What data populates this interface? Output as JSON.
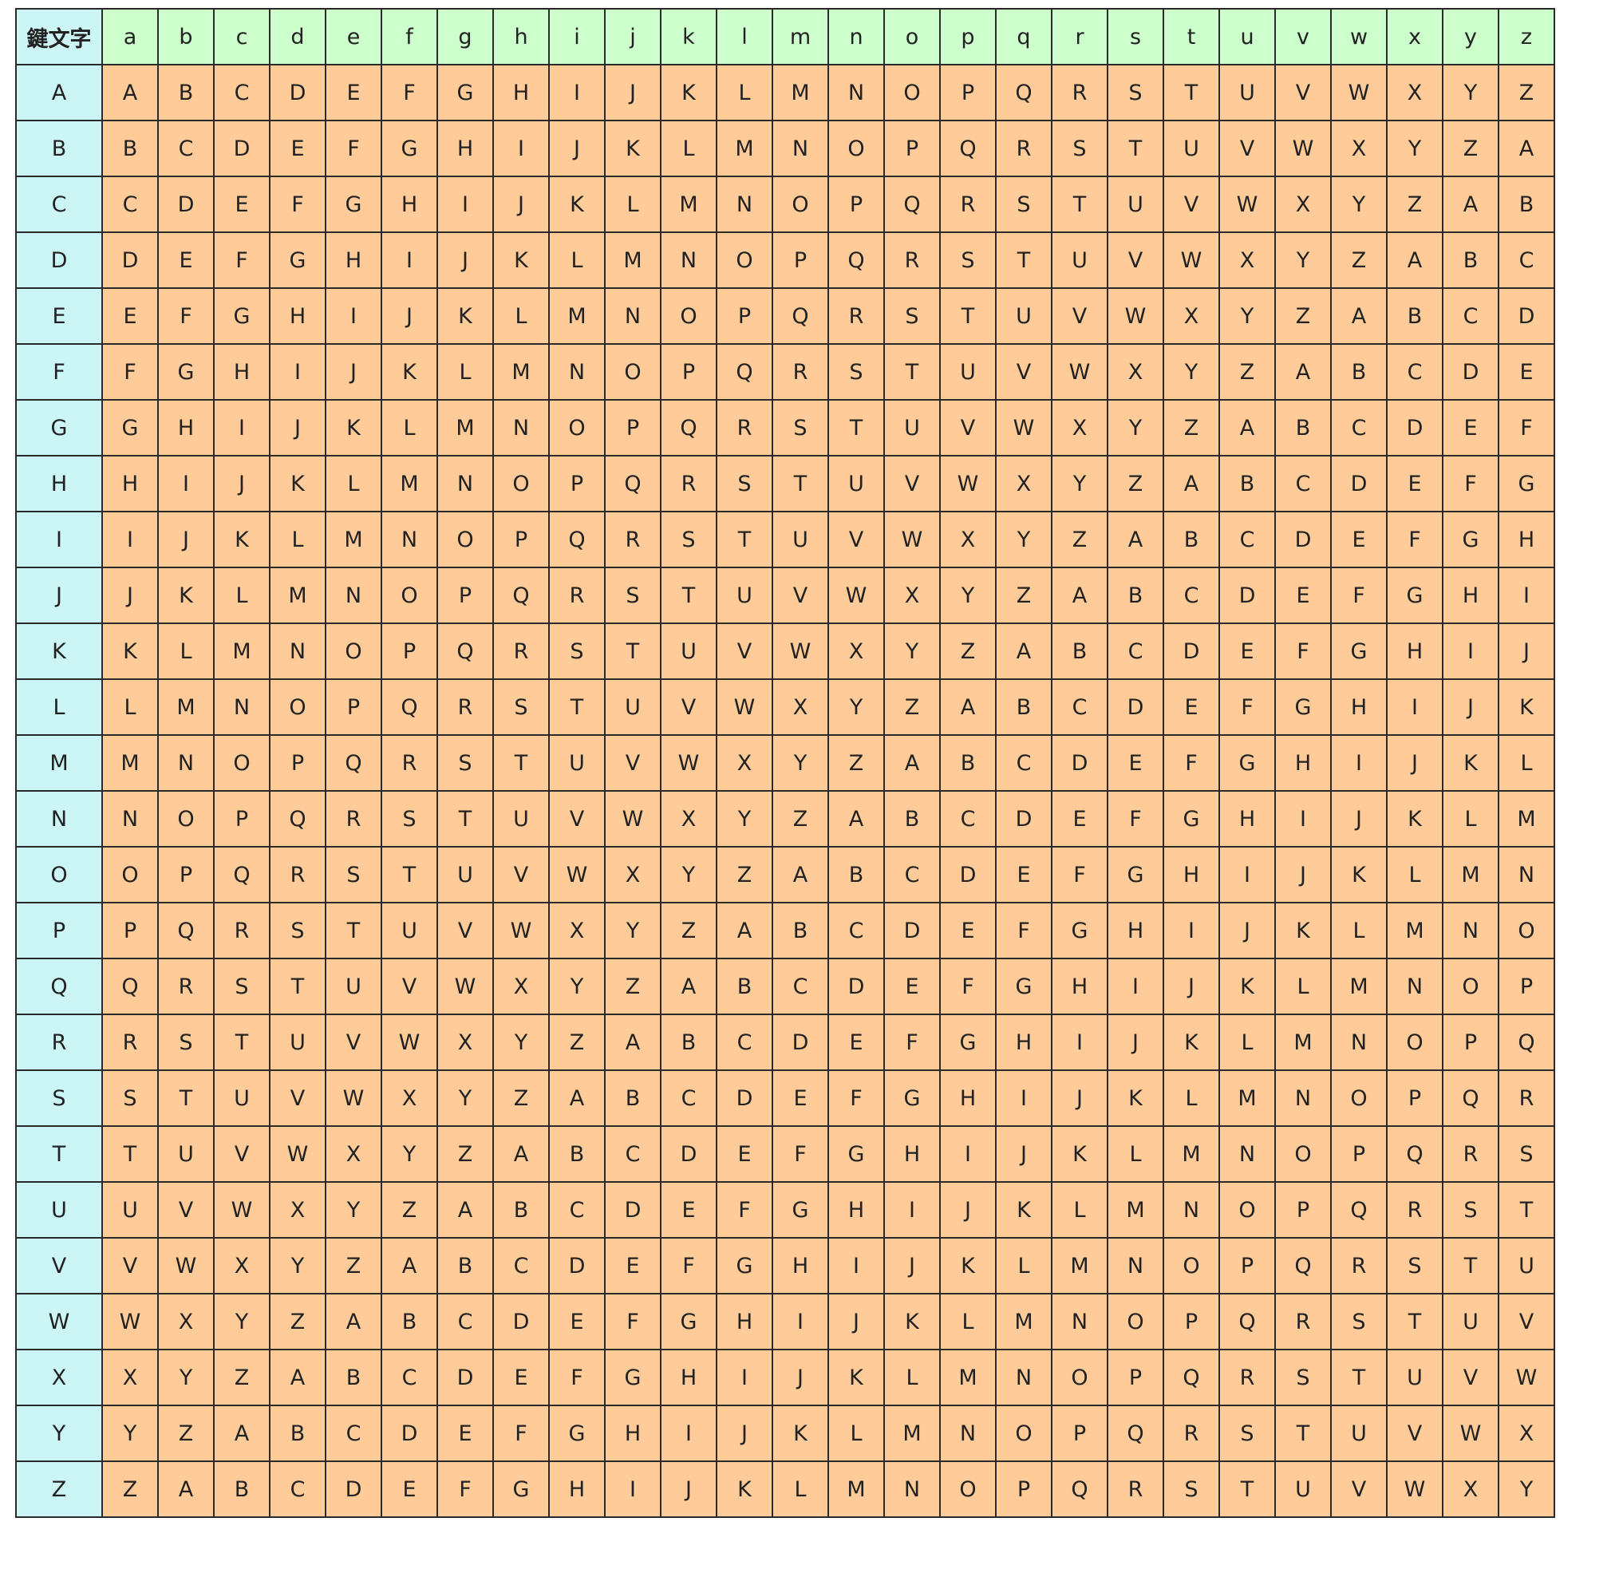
{
  "table": {
    "corner_label": "鍵文字",
    "column_keys": [
      "a",
      "b",
      "c",
      "d",
      "e",
      "f",
      "g",
      "h",
      "i",
      "j",
      "k",
      "l",
      "m",
      "n",
      "o",
      "p",
      "q",
      "r",
      "s",
      "t",
      "u",
      "v",
      "w",
      "x",
      "y",
      "z"
    ],
    "row_keys": [
      "A",
      "B",
      "C",
      "D",
      "E",
      "F",
      "G",
      "H",
      "I",
      "J",
      "K",
      "L",
      "M",
      "N",
      "O",
      "P",
      "Q",
      "R",
      "S",
      "T",
      "U",
      "V",
      "W",
      "X",
      "Y",
      "Z"
    ],
    "rows": [
      [
        "A",
        "B",
        "C",
        "D",
        "E",
        "F",
        "G",
        "H",
        "I",
        "J",
        "K",
        "L",
        "M",
        "N",
        "O",
        "P",
        "Q",
        "R",
        "S",
        "T",
        "U",
        "V",
        "W",
        "X",
        "Y",
        "Z"
      ],
      [
        "B",
        "C",
        "D",
        "E",
        "F",
        "G",
        "H",
        "I",
        "J",
        "K",
        "L",
        "M",
        "N",
        "O",
        "P",
        "Q",
        "R",
        "S",
        "T",
        "U",
        "V",
        "W",
        "X",
        "Y",
        "Z",
        "A"
      ],
      [
        "C",
        "D",
        "E",
        "F",
        "G",
        "H",
        "I",
        "J",
        "K",
        "L",
        "M",
        "N",
        "O",
        "P",
        "Q",
        "R",
        "S",
        "T",
        "U",
        "V",
        "W",
        "X",
        "Y",
        "Z",
        "A",
        "B"
      ],
      [
        "D",
        "E",
        "F",
        "G",
        "H",
        "I",
        "J",
        "K",
        "L",
        "M",
        "N",
        "O",
        "P",
        "Q",
        "R",
        "S",
        "T",
        "U",
        "V",
        "W",
        "X",
        "Y",
        "Z",
        "A",
        "B",
        "C"
      ],
      [
        "E",
        "F",
        "G",
        "H",
        "I",
        "J",
        "K",
        "L",
        "M",
        "N",
        "O",
        "P",
        "Q",
        "R",
        "S",
        "T",
        "U",
        "V",
        "W",
        "X",
        "Y",
        "Z",
        "A",
        "B",
        "C",
        "D"
      ],
      [
        "F",
        "G",
        "H",
        "I",
        "J",
        "K",
        "L",
        "M",
        "N",
        "O",
        "P",
        "Q",
        "R",
        "S",
        "T",
        "U",
        "V",
        "W",
        "X",
        "Y",
        "Z",
        "A",
        "B",
        "C",
        "D",
        "E"
      ],
      [
        "G",
        "H",
        "I",
        "J",
        "K",
        "L",
        "M",
        "N",
        "O",
        "P",
        "Q",
        "R",
        "S",
        "T",
        "U",
        "V",
        "W",
        "X",
        "Y",
        "Z",
        "A",
        "B",
        "C",
        "D",
        "E",
        "F"
      ],
      [
        "H",
        "I",
        "J",
        "K",
        "L",
        "M",
        "N",
        "O",
        "P",
        "Q",
        "R",
        "S",
        "T",
        "U",
        "V",
        "W",
        "X",
        "Y",
        "Z",
        "A",
        "B",
        "C",
        "D",
        "E",
        "F",
        "G"
      ],
      [
        "I",
        "J",
        "K",
        "L",
        "M",
        "N",
        "O",
        "P",
        "Q",
        "R",
        "S",
        "T",
        "U",
        "V",
        "W",
        "X",
        "Y",
        "Z",
        "A",
        "B",
        "C",
        "D",
        "E",
        "F",
        "G",
        "H"
      ],
      [
        "J",
        "K",
        "L",
        "M",
        "N",
        "O",
        "P",
        "Q",
        "R",
        "S",
        "T",
        "U",
        "V",
        "W",
        "X",
        "Y",
        "Z",
        "A",
        "B",
        "C",
        "D",
        "E",
        "F",
        "G",
        "H",
        "I"
      ],
      [
        "K",
        "L",
        "M",
        "N",
        "O",
        "P",
        "Q",
        "R",
        "S",
        "T",
        "U",
        "V",
        "W",
        "X",
        "Y",
        "Z",
        "A",
        "B",
        "C",
        "D",
        "E",
        "F",
        "G",
        "H",
        "I",
        "J"
      ],
      [
        "L",
        "M",
        "N",
        "O",
        "P",
        "Q",
        "R",
        "S",
        "T",
        "U",
        "V",
        "W",
        "X",
        "Y",
        "Z",
        "A",
        "B",
        "C",
        "D",
        "E",
        "F",
        "G",
        "H",
        "I",
        "J",
        "K"
      ],
      [
        "M",
        "N",
        "O",
        "P",
        "Q",
        "R",
        "S",
        "T",
        "U",
        "V",
        "W",
        "X",
        "Y",
        "Z",
        "A",
        "B",
        "C",
        "D",
        "E",
        "F",
        "G",
        "H",
        "I",
        "J",
        "K",
        "L"
      ],
      [
        "N",
        "O",
        "P",
        "Q",
        "R",
        "S",
        "T",
        "U",
        "V",
        "W",
        "X",
        "Y",
        "Z",
        "A",
        "B",
        "C",
        "D",
        "E",
        "F",
        "G",
        "H",
        "I",
        "J",
        "K",
        "L",
        "M"
      ],
      [
        "O",
        "P",
        "Q",
        "R",
        "S",
        "T",
        "U",
        "V",
        "W",
        "X",
        "Y",
        "Z",
        "A",
        "B",
        "C",
        "D",
        "E",
        "F",
        "G",
        "H",
        "I",
        "J",
        "K",
        "L",
        "M",
        "N"
      ],
      [
        "P",
        "Q",
        "R",
        "S",
        "T",
        "U",
        "V",
        "W",
        "X",
        "Y",
        "Z",
        "A",
        "B",
        "C",
        "D",
        "E",
        "F",
        "G",
        "H",
        "I",
        "J",
        "K",
        "L",
        "M",
        "N",
        "O"
      ],
      [
        "Q",
        "R",
        "S",
        "T",
        "U",
        "V",
        "W",
        "X",
        "Y",
        "Z",
        "A",
        "B",
        "C",
        "D",
        "E",
        "F",
        "G",
        "H",
        "I",
        "J",
        "K",
        "L",
        "M",
        "N",
        "O",
        "P"
      ],
      [
        "R",
        "S",
        "T",
        "U",
        "V",
        "W",
        "X",
        "Y",
        "Z",
        "A",
        "B",
        "C",
        "D",
        "E",
        "F",
        "G",
        "H",
        "I",
        "J",
        "K",
        "L",
        "M",
        "N",
        "O",
        "P",
        "Q"
      ],
      [
        "S",
        "T",
        "U",
        "V",
        "W",
        "X",
        "Y",
        "Z",
        "A",
        "B",
        "C",
        "D",
        "E",
        "F",
        "G",
        "H",
        "I",
        "J",
        "K",
        "L",
        "M",
        "N",
        "O",
        "P",
        "Q",
        "R"
      ],
      [
        "T",
        "U",
        "V",
        "W",
        "X",
        "Y",
        "Z",
        "A",
        "B",
        "C",
        "D",
        "E",
        "F",
        "G",
        "H",
        "I",
        "J",
        "K",
        "L",
        "M",
        "N",
        "O",
        "P",
        "Q",
        "R",
        "S"
      ],
      [
        "U",
        "V",
        "W",
        "X",
        "Y",
        "Z",
        "A",
        "B",
        "C",
        "D",
        "E",
        "F",
        "G",
        "H",
        "I",
        "J",
        "K",
        "L",
        "M",
        "N",
        "O",
        "P",
        "Q",
        "R",
        "S",
        "T"
      ],
      [
        "V",
        "W",
        "X",
        "Y",
        "Z",
        "A",
        "B",
        "C",
        "D",
        "E",
        "F",
        "G",
        "H",
        "I",
        "J",
        "K",
        "L",
        "M",
        "N",
        "O",
        "P",
        "Q",
        "R",
        "S",
        "T",
        "U"
      ],
      [
        "W",
        "X",
        "Y",
        "Z",
        "A",
        "B",
        "C",
        "D",
        "E",
        "F",
        "G",
        "H",
        "I",
        "J",
        "K",
        "L",
        "M",
        "N",
        "O",
        "P",
        "Q",
        "R",
        "S",
        "T",
        "U",
        "V"
      ],
      [
        "X",
        "Y",
        "Z",
        "A",
        "B",
        "C",
        "D",
        "E",
        "F",
        "G",
        "H",
        "I",
        "J",
        "K",
        "L",
        "M",
        "N",
        "O",
        "P",
        "Q",
        "R",
        "S",
        "T",
        "U",
        "V",
        "W"
      ],
      [
        "Y",
        "Z",
        "A",
        "B",
        "C",
        "D",
        "E",
        "F",
        "G",
        "H",
        "I",
        "J",
        "K",
        "L",
        "M",
        "N",
        "O",
        "P",
        "Q",
        "R",
        "S",
        "T",
        "U",
        "V",
        "W",
        "X"
      ],
      [
        "Z",
        "A",
        "B",
        "C",
        "D",
        "E",
        "F",
        "G",
        "H",
        "I",
        "J",
        "K",
        "L",
        "M",
        "N",
        "O",
        "P",
        "Q",
        "R",
        "S",
        "T",
        "U",
        "V",
        "W",
        "X",
        "Y"
      ]
    ]
  },
  "colors": {
    "header_row_bg": "#ccffcc",
    "header_col_bg": "#ccf6f6",
    "cell_bg": "#ffcc99",
    "border": "#2a2a2a",
    "text": "#222222"
  }
}
